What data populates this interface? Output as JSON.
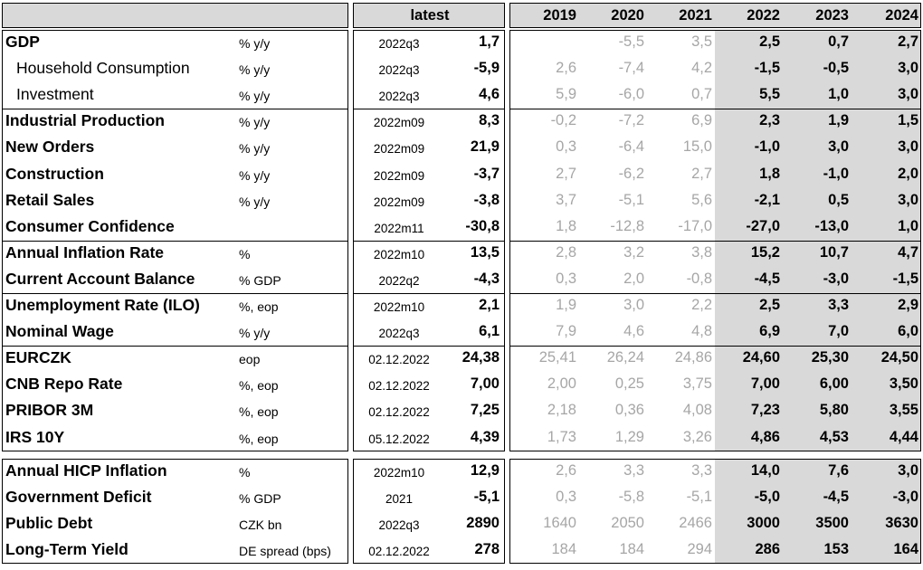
{
  "header": {
    "latest": "latest",
    "years": [
      "2019",
      "2020",
      "2021",
      "2022",
      "2023",
      "2024"
    ]
  },
  "groups": [
    [
      {
        "label": "GDP",
        "style": "bold",
        "unit": "% y/y",
        "date": "2022q3",
        "latest": "1,7",
        "hist": [
          "",
          "-5,5",
          "3,5"
        ],
        "fc": [
          "2,5",
          "0,7",
          "2,7"
        ]
      },
      {
        "label": "Household Consumption",
        "style": "indent",
        "unit": "% y/y",
        "date": "2022q3",
        "latest": "-5,9",
        "hist": [
          "2,6",
          "-7,4",
          "4,2"
        ],
        "fc": [
          "-1,5",
          "-0,5",
          "3,0"
        ]
      },
      {
        "label": "Investment",
        "style": "indent",
        "unit": "% y/y",
        "date": "2022q3",
        "latest": "4,6",
        "hist": [
          "5,9",
          "-6,0",
          "0,7"
        ],
        "fc": [
          "5,5",
          "1,0",
          "3,0"
        ]
      }
    ],
    [
      {
        "label": "Industrial Production",
        "style": "bold",
        "unit": "% y/y",
        "date": "2022m09",
        "latest": "8,3",
        "hist": [
          "-0,2",
          "-7,2",
          "6,9"
        ],
        "fc": [
          "2,3",
          "1,9",
          "1,5"
        ]
      },
      {
        "label": "New Orders",
        "style": "bold",
        "unit": "% y/y",
        "date": "2022m09",
        "latest": "21,9",
        "hist": [
          "0,3",
          "-6,4",
          "15,0"
        ],
        "fc": [
          "-1,0",
          "3,0",
          "3,0"
        ]
      },
      {
        "label": "Construction",
        "style": "bold",
        "unit": "% y/y",
        "date": "2022m09",
        "latest": "-3,7",
        "hist": [
          "2,7",
          "-6,2",
          "2,7"
        ],
        "fc": [
          "1,8",
          "-1,0",
          "2,0"
        ]
      },
      {
        "label": "Retail Sales",
        "style": "bold",
        "unit": "% y/y",
        "date": "2022m09",
        "latest": "-3,8",
        "hist": [
          "3,7",
          "-5,1",
          "5,6"
        ],
        "fc": [
          "-2,1",
          "0,5",
          "3,0"
        ]
      },
      {
        "label": "Consumer Confidence",
        "style": "bold",
        "unit": "",
        "date": "2022m11",
        "latest": "-30,8",
        "hist": [
          "1,8",
          "-12,8",
          "-17,0"
        ],
        "fc": [
          "-27,0",
          "-13,0",
          "1,0"
        ]
      }
    ],
    [
      {
        "label": "Annual Inflation Rate",
        "style": "bold",
        "unit": "%",
        "date": "2022m10",
        "latest": "13,5",
        "hist": [
          "2,8",
          "3,2",
          "3,8"
        ],
        "fc": [
          "15,2",
          "10,7",
          "4,7"
        ]
      },
      {
        "label": "Current Account Balance",
        "style": "bold",
        "unit": "% GDP",
        "date": "2022q2",
        "latest": "-4,3",
        "hist": [
          "0,3",
          "2,0",
          "-0,8"
        ],
        "fc": [
          "-4,5",
          "-3,0",
          "-1,5"
        ]
      }
    ],
    [
      {
        "label": "Unemployment Rate (ILO)",
        "style": "bold",
        "unit": "%, eop",
        "date": "2022m10",
        "latest": "2,1",
        "hist": [
          "1,9",
          "3,0",
          "2,2"
        ],
        "fc": [
          "2,5",
          "3,3",
          "2,9"
        ]
      },
      {
        "label": "Nominal Wage",
        "style": "bold",
        "unit": "% y/y",
        "date": "2022q3",
        "latest": "6,1",
        "hist": [
          "7,9",
          "4,6",
          "4,8"
        ],
        "fc": [
          "6,9",
          "7,0",
          "6,0"
        ]
      }
    ],
    [
      {
        "label": "EURCZK",
        "style": "bold",
        "unit": "eop",
        "date": "02.12.2022",
        "latest": "24,38",
        "hist": [
          "25,41",
          "26,24",
          "24,86"
        ],
        "fc": [
          "24,60",
          "25,30",
          "24,50"
        ]
      },
      {
        "label": "CNB Repo Rate",
        "style": "bold",
        "unit": "%, eop",
        "date": "02.12.2022",
        "latest": "7,00",
        "hist": [
          "2,00",
          "0,25",
          "3,75"
        ],
        "fc": [
          "7,00",
          "6,00",
          "3,50"
        ]
      },
      {
        "label": "PRIBOR 3M",
        "style": "bold",
        "unit": "%, eop",
        "date": "02.12.2022",
        "latest": "7,25",
        "hist": [
          "2,18",
          "0,36",
          "4,08"
        ],
        "fc": [
          "7,23",
          "5,80",
          "3,55"
        ]
      },
      {
        "label": "IRS 10Y",
        "style": "bold",
        "unit": "%, eop",
        "date": "05.12.2022",
        "latest": "4,39",
        "hist": [
          "1,73",
          "1,29",
          "3,26"
        ],
        "fc": [
          "4,86",
          "4,53",
          "4,44"
        ]
      }
    ],
    [
      {
        "label": "Annual HICP Inflation",
        "style": "bold",
        "unit": "%",
        "date": "2022m10",
        "latest": "12,9",
        "hist": [
          "2,6",
          "3,3",
          "3,3"
        ],
        "fc": [
          "14,0",
          "7,6",
          "3,0"
        ]
      },
      {
        "label": "Government Deficit",
        "style": "bold",
        "unit": "% GDP",
        "date": "2021",
        "latest": "-5,1",
        "hist": [
          "0,3",
          "-5,8",
          "-5,1"
        ],
        "fc": [
          "-5,0",
          "-4,5",
          "-3,0"
        ]
      },
      {
        "label": "Public Debt",
        "style": "bold",
        "unit": "CZK bn",
        "date": "2022q3",
        "latest": "2890",
        "hist": [
          "1640",
          "2050",
          "2466"
        ],
        "fc": [
          "3000",
          "3500",
          "3630"
        ]
      },
      {
        "label": "Long-Term Yield",
        "style": "bold",
        "unit": "DE spread (bps)",
        "date": "02.12.2022",
        "latest": "278",
        "hist": [
          "184",
          "184",
          "294"
        ],
        "fc": [
          "286",
          "153",
          "164"
        ]
      }
    ]
  ]
}
